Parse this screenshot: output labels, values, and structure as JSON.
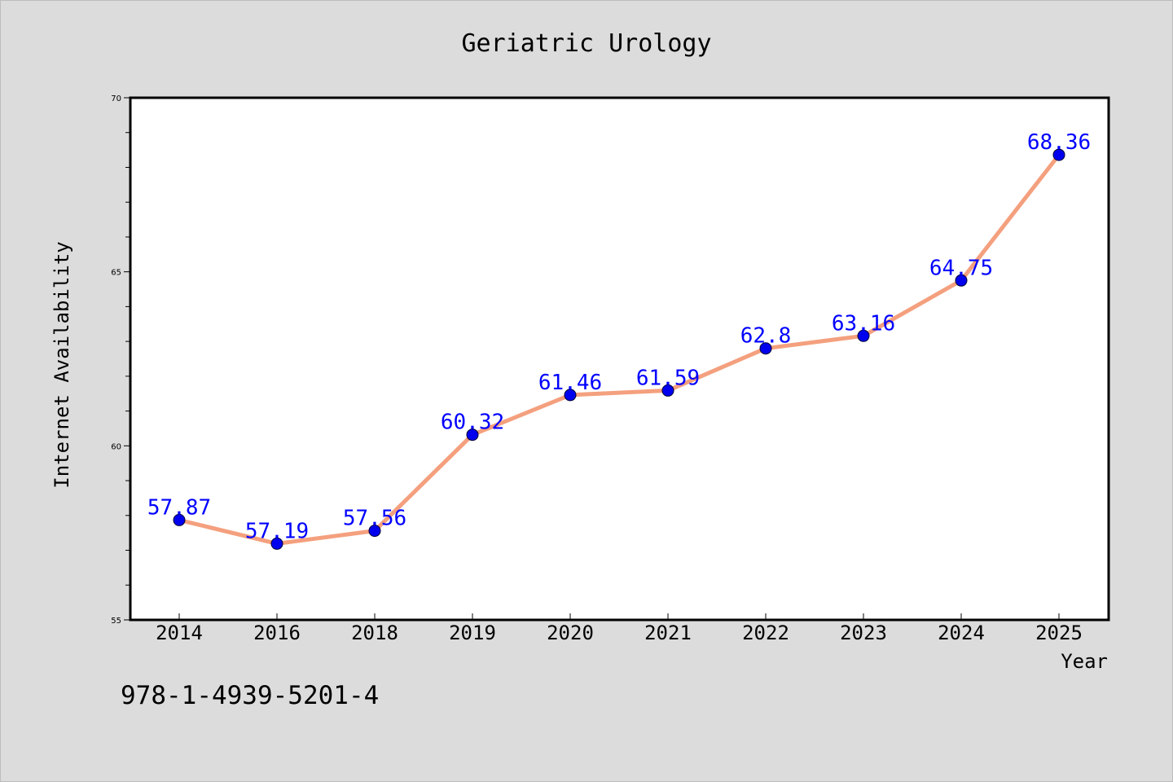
{
  "chart_data": {
    "type": "line",
    "title": "Geriatric Urology",
    "xlabel": "Year",
    "ylabel": "Internet Availability",
    "categories": [
      "2014",
      "2016",
      "2018",
      "2019",
      "2020",
      "2021",
      "2022",
      "2023",
      "2024",
      "2025"
    ],
    "series": [
      {
        "values": [
          57.87,
          57.19,
          57.56,
          60.32,
          61.46,
          61.59,
          62.8,
          63.16,
          64.75,
          68.36
        ],
        "labels": [
          "57.87",
          "57.19",
          "57.56",
          "60.32",
          "61.46",
          "61.59",
          "62.8",
          "63.16",
          "64.75",
          "68.36"
        ],
        "line_color": "#f4a07e",
        "marker_color": "#0000ee"
      }
    ],
    "ylim": [
      55,
      70
    ],
    "yticks": [
      "55",
      "60",
      "65",
      "70"
    ],
    "grid": false,
    "data_label_color": "#0000ff"
  },
  "footnote": "978-1-4939-5201-4",
  "colors": {
    "background": "#dcdcdc",
    "plot_background": "#ffffff"
  }
}
